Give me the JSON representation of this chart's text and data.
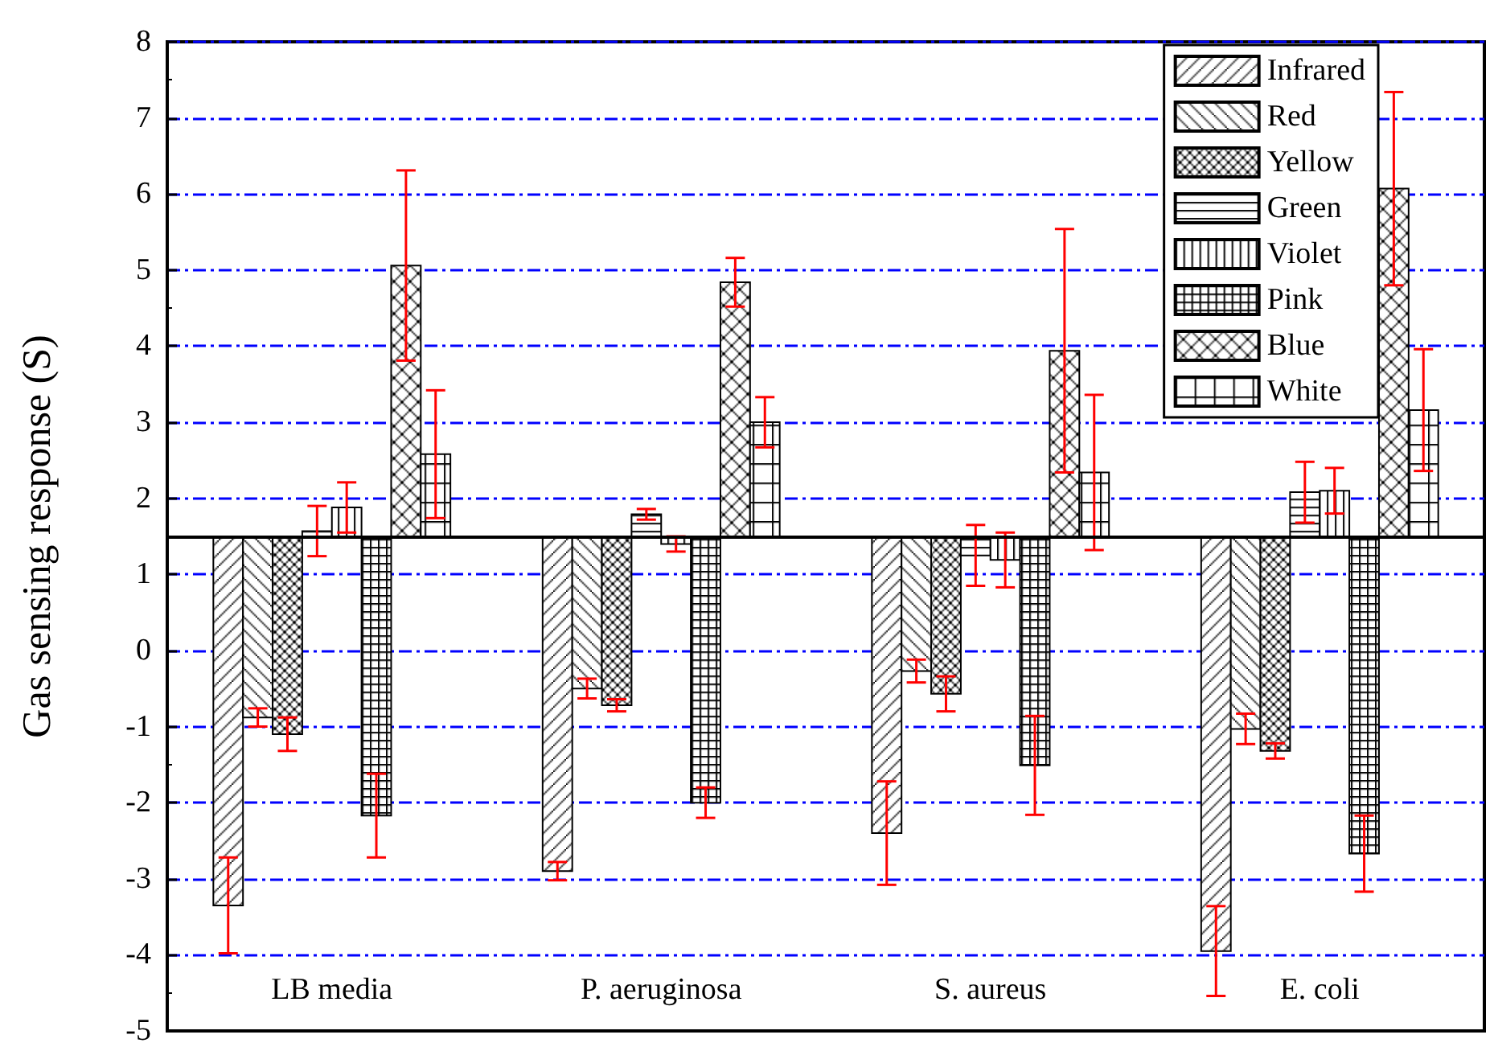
{
  "chart_data": {
    "type": "bar",
    "ylabel": "Gas sensing response (S)",
    "categories": [
      "LB media",
      "P. aeruginosa",
      "S. aureus",
      "E. coli"
    ],
    "series": [
      {
        "name": "Infrared",
        "color": "#000000",
        "base": [
          1.5,
          1.5,
          1.5,
          1.5
        ],
        "values": [
          -4.85,
          -4.4,
          -3.9,
          -5.45
        ],
        "errors": [
          0.63,
          0.12,
          0.68,
          0.59
        ]
      },
      {
        "name": "Red",
        "color": "#000000",
        "base": [
          1.5,
          1.5,
          1.5,
          1.5
        ],
        "values": [
          -2.38,
          -2.0,
          -1.77,
          -2.53
        ],
        "errors": [
          0.12,
          0.13,
          0.15,
          0.2
        ]
      },
      {
        "name": "Yellow",
        "color": "#000000",
        "base": [
          1.5,
          1.5,
          1.5,
          1.5
        ],
        "values": [
          -2.6,
          -2.22,
          -2.07,
          -2.82
        ],
        "errors": [
          0.22,
          0.08,
          0.23,
          0.1
        ]
      },
      {
        "name": "Green",
        "color": "#000000",
        "base": [
          1.5,
          1.5,
          1.5,
          1.5
        ],
        "values": [
          0.07,
          0.29,
          -0.25,
          0.58
        ],
        "errors": [
          0.33,
          0.07,
          0.4,
          0.4
        ]
      },
      {
        "name": "Violet",
        "color": "#000000",
        "base": [
          1.5,
          1.5,
          1.5,
          1.5
        ],
        "values": [
          0.38,
          -0.1,
          -0.31,
          0.6
        ],
        "errors": [
          0.33,
          0.1,
          0.36,
          0.3
        ]
      },
      {
        "name": "Pink",
        "color": "#000000",
        "base": [
          1.5,
          1.5,
          1.5,
          1.5
        ],
        "values": [
          -3.67,
          -3.5,
          -3.01,
          -4.17
        ],
        "errors": [
          0.55,
          0.2,
          0.65,
          0.5
        ]
      },
      {
        "name": "Blue",
        "color": "#000000",
        "base": [
          1.5,
          1.5,
          1.5,
          1.5
        ],
        "values": [
          3.56,
          3.34,
          2.44,
          4.57
        ],
        "errors": [
          1.25,
          0.32,
          1.6,
          1.27
        ]
      },
      {
        "name": "White",
        "color": "#000000",
        "base": [
          1.5,
          1.5,
          1.5,
          1.5
        ],
        "values": [
          1.08,
          1.5,
          0.84,
          1.66
        ],
        "errors": [
          0.84,
          0.33,
          1.02,
          0.8
        ]
      }
    ],
    "ylim": [
      -5,
      8
    ],
    "yticks": [
      -5,
      -4,
      -3,
      -2,
      -1,
      0,
      1,
      2,
      3,
      4,
      5,
      6,
      7,
      8
    ],
    "ref_lines": [
      {
        "axis": "y",
        "value": 1.5,
        "color": "#000000"
      }
    ],
    "grid": "y",
    "legend": "top right"
  }
}
